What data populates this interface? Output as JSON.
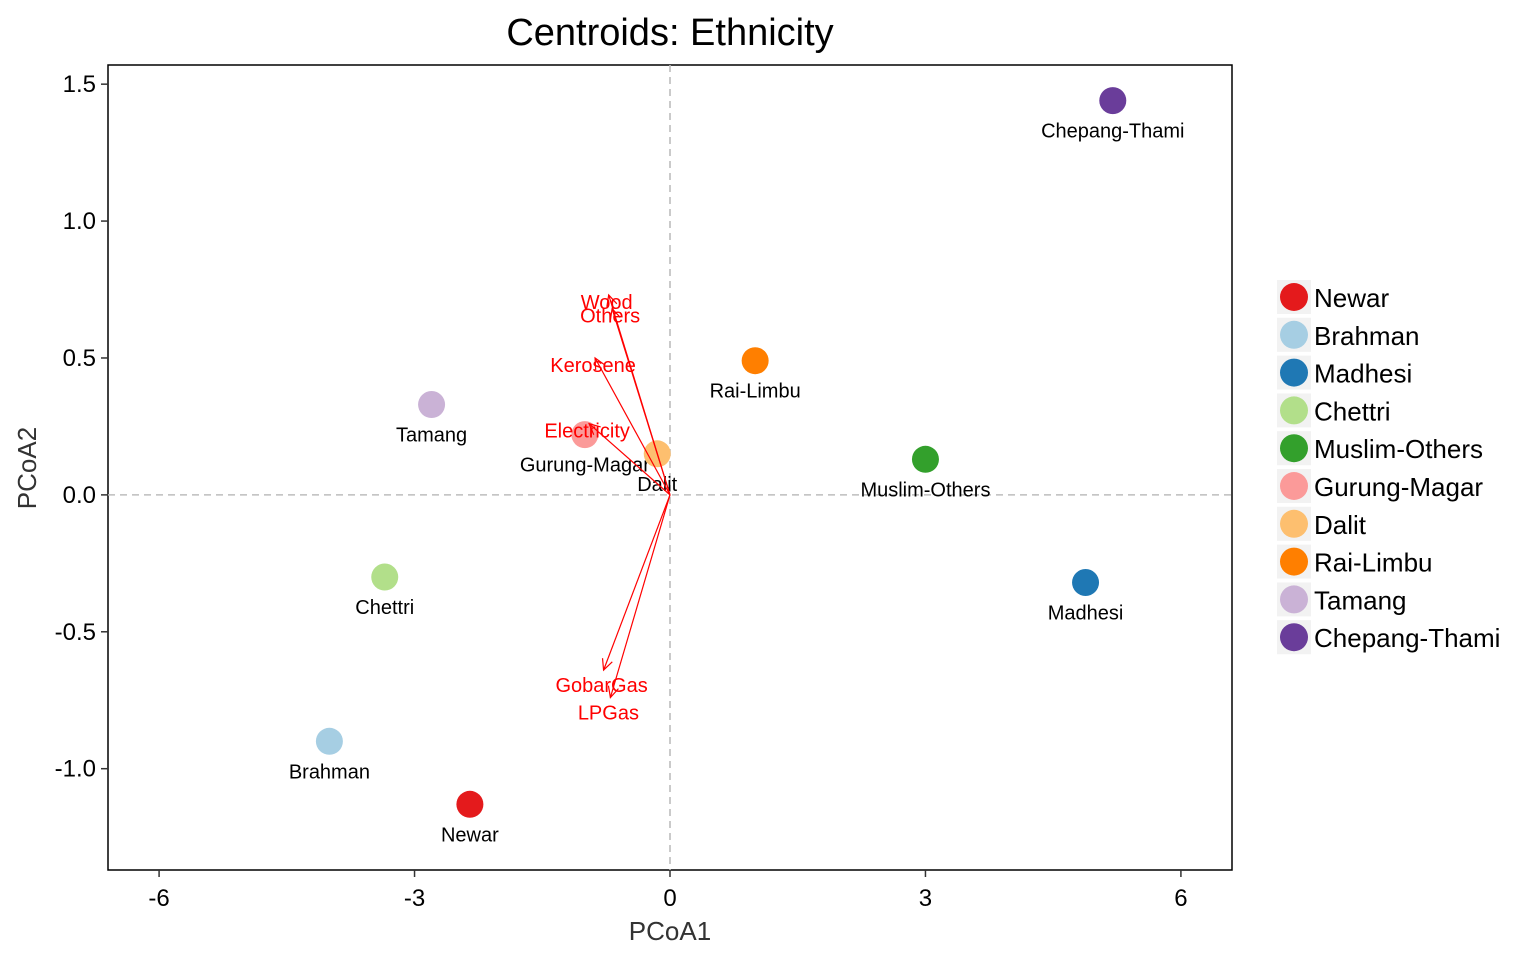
{
  "chart_data": {
    "type": "scatter",
    "title": "Centroids: Ethnicity",
    "xlabel": "PCoA1",
    "ylabel": "PCoA2",
    "xlim": [
      -6.6,
      6.6
    ],
    "ylim": [
      -1.37,
      1.57
    ],
    "x_ticks": [
      -6,
      -3,
      0,
      3,
      6
    ],
    "x_tick_labels": [
      "-6",
      "-3",
      "0",
      "3",
      "6"
    ],
    "y_ticks": [
      -1.0,
      -0.5,
      0.0,
      0.5,
      1.0,
      1.5
    ],
    "y_tick_labels": [
      "-1.0",
      "-0.5",
      "0.0",
      "0.5",
      "1.0",
      "1.5"
    ],
    "grid": false,
    "reference_lines": {
      "x": 0,
      "y": 0,
      "style": "dashed",
      "color": "#bdbdbd"
    },
    "legend_placement": "right",
    "points": [
      {
        "name": "Newar",
        "x": -2.35,
        "y": -1.13,
        "color": "#e41a1c"
      },
      {
        "name": "Brahman",
        "x": -4.0,
        "y": -0.9,
        "color": "#a6cee3"
      },
      {
        "name": "Madhesi",
        "x": 4.88,
        "y": -0.32,
        "color": "#1f78b4"
      },
      {
        "name": "Chettri",
        "x": -3.35,
        "y": -0.3,
        "color": "#b2df8a"
      },
      {
        "name": "Muslim-Others",
        "x": 3.0,
        "y": 0.13,
        "color": "#33a02c"
      },
      {
        "name": "Gurung-Magar",
        "x": -1.0,
        "y": 0.22,
        "color": "#fb9a99"
      },
      {
        "name": "Dalit",
        "x": -0.15,
        "y": 0.15,
        "color": "#fdbf6f"
      },
      {
        "name": "Rai-Limbu",
        "x": 1.0,
        "y": 0.49,
        "color": "#ff7f00"
      },
      {
        "name": "Tamang",
        "x": -2.8,
        "y": 0.33,
        "color": "#cab2d6"
      },
      {
        "name": "Chepang-Thami",
        "x": 5.2,
        "y": 1.44,
        "color": "#6a3d9a"
      }
    ],
    "vectors": [
      {
        "name": "Wood",
        "x": -0.72,
        "y": 0.73,
        "color": "#ff0000"
      },
      {
        "name": "Others",
        "x": -0.68,
        "y": 0.68,
        "color": "#ff0000"
      },
      {
        "name": "Kerosene",
        "x": -0.88,
        "y": 0.5,
        "color": "#ff0000"
      },
      {
        "name": "Electricity",
        "x": -0.95,
        "y": 0.26,
        "color": "#ff0000"
      },
      {
        "name": "GobarGas",
        "x": -0.78,
        "y": -0.64,
        "color": "#ff0000"
      },
      {
        "name": "LPGas",
        "x": -0.7,
        "y": -0.74,
        "color": "#ff0000"
      }
    ]
  }
}
